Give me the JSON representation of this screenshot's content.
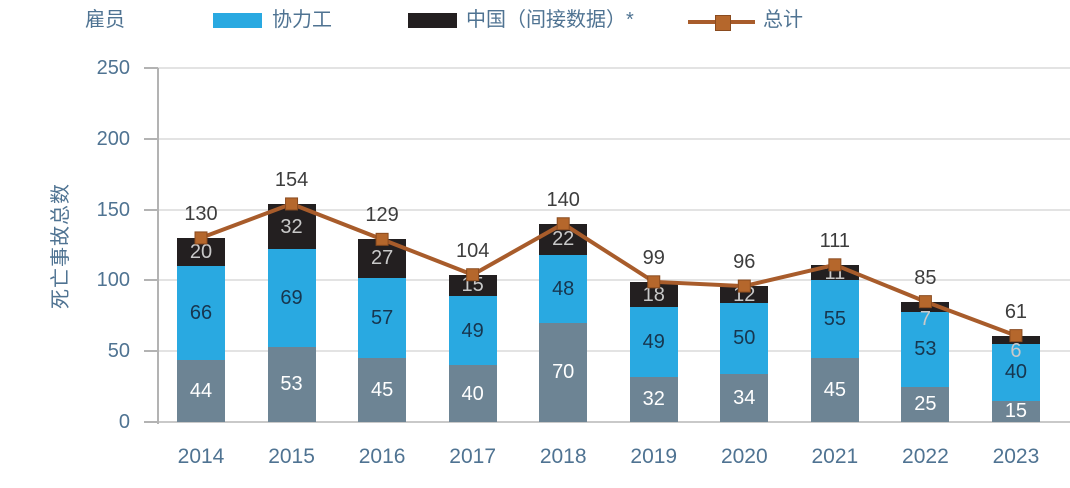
{
  "chart_data": {
    "type": "bar",
    "variant": "stacked-column-with-total-line",
    "title": "",
    "xlabel": "",
    "ylabel": "死亡事故总数",
    "categories": [
      "2014",
      "2015",
      "2016",
      "2017",
      "2018",
      "2019",
      "2020",
      "2021",
      "2022",
      "2023"
    ],
    "series": [
      {
        "name": "雇员",
        "role": "employees",
        "color": "#6d8494",
        "label_color": "#ffffff",
        "values": [
          44,
          53,
          45,
          40,
          70,
          32,
          34,
          45,
          25,
          15
        ]
      },
      {
        "name": "协力工",
        "role": "contractors",
        "color": "#29a9e1",
        "label_color": "#17364f",
        "values": [
          66,
          69,
          57,
          49,
          48,
          49,
          50,
          55,
          53,
          40
        ]
      },
      {
        "name": "中国（间接数据）*",
        "role": "china-indirect-data",
        "color": "#231f20",
        "label_color": "#c9c9c9",
        "values": [
          20,
          32,
          27,
          15,
          22,
          18,
          12,
          11,
          7,
          6
        ]
      }
    ],
    "line_series": {
      "name": "总计",
      "color": "#a85c2b",
      "marker_color": "#b5672c",
      "marker_edge": "#8a4b1f",
      "values": [
        130,
        154,
        129,
        104,
        140,
        99,
        96,
        111,
        85,
        61
      ]
    },
    "y_axis": {
      "min": 0,
      "max": 250,
      "step": 50,
      "tick_labels": [
        "0",
        "50",
        "100",
        "150",
        "200",
        "250"
      ]
    },
    "grid": true,
    "legend_position": "top",
    "colors": {
      "axis_text": "#4f7392",
      "legend_text": "#4f7392",
      "grid_line": "#e3e3e3",
      "axis_line": "#b3b3b3",
      "zero_line": "#c9c9c9",
      "total_label": "#3d3d3d",
      "background": "#ffffff"
    }
  }
}
